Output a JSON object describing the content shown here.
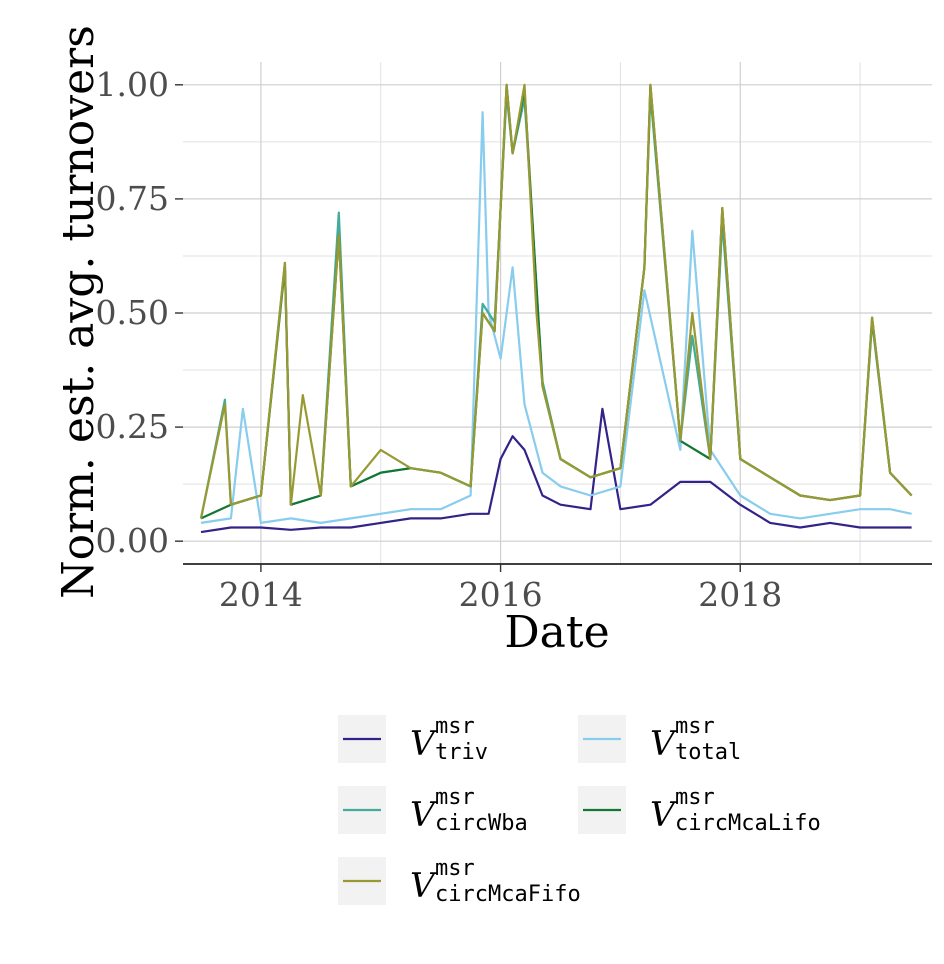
{
  "chart_data": {
    "type": "line",
    "title": "",
    "xlabel": "Date",
    "ylabel": "Norm. est. avg. turnovers",
    "xlim": [
      2013.35,
      2019.6
    ],
    "ylim": [
      -0.05,
      1.05
    ],
    "x_ticks": [
      {
        "value": 2014,
        "label": "2014"
      },
      {
        "value": 2016,
        "label": "2016"
      },
      {
        "value": 2018,
        "label": "2018"
      }
    ],
    "y_ticks": [
      {
        "value": 0.0,
        "label": "0.00"
      },
      {
        "value": 0.25,
        "label": "0.25"
      },
      {
        "value": 0.5,
        "label": "0.50"
      },
      {
        "value": 0.75,
        "label": "0.75"
      },
      {
        "value": 1.0,
        "label": "1.00"
      }
    ],
    "grid": true,
    "legend_position": "bottom",
    "series": [
      {
        "name": "V",
        "sup": "msr",
        "sub": "triv",
        "color": "#332288",
        "x": [
          2013.5,
          2013.75,
          2014.0,
          2014.25,
          2014.5,
          2014.75,
          2015.0,
          2015.25,
          2015.5,
          2015.75,
          2015.9,
          2016.0,
          2016.1,
          2016.2,
          2016.35,
          2016.5,
          2016.75,
          2016.85,
          2017.0,
          2017.25,
          2017.5,
          2017.75,
          2018.0,
          2018.25,
          2018.5,
          2018.75,
          2019.0,
          2019.25,
          2019.43
        ],
        "y": [
          0.02,
          0.03,
          0.03,
          0.025,
          0.03,
          0.03,
          0.04,
          0.05,
          0.05,
          0.06,
          0.06,
          0.18,
          0.23,
          0.2,
          0.1,
          0.08,
          0.07,
          0.29,
          0.07,
          0.08,
          0.13,
          0.13,
          0.08,
          0.04,
          0.03,
          0.04,
          0.03,
          0.03,
          0.03
        ]
      },
      {
        "name": "V",
        "sup": "msr",
        "sub": "total",
        "color": "#88CCEE",
        "x": [
          2013.5,
          2013.75,
          2013.85,
          2014.0,
          2014.25,
          2014.5,
          2014.75,
          2015.0,
          2015.25,
          2015.5,
          2015.75,
          2015.85,
          2015.9,
          2016.0,
          2016.1,
          2016.2,
          2016.35,
          2016.5,
          2016.75,
          2017.0,
          2017.2,
          2017.5,
          2017.6,
          2017.75,
          2018.0,
          2018.25,
          2018.5,
          2018.75,
          2019.0,
          2019.25,
          2019.43
        ],
        "y": [
          0.04,
          0.05,
          0.29,
          0.04,
          0.05,
          0.04,
          0.05,
          0.06,
          0.07,
          0.07,
          0.1,
          0.94,
          0.5,
          0.4,
          0.6,
          0.3,
          0.15,
          0.12,
          0.1,
          0.12,
          0.55,
          0.2,
          0.68,
          0.2,
          0.1,
          0.06,
          0.05,
          0.06,
          0.07,
          0.07,
          0.06
        ]
      },
      {
        "name": "V",
        "sup": "msr",
        "sub": "circWba",
        "color": "#44AA99",
        "x": [
          2013.5,
          2013.7,
          2013.75,
          2014.0,
          2014.2,
          2014.25,
          2014.5,
          2014.65,
          2014.75,
          2015.0,
          2015.25,
          2015.5,
          2015.75,
          2015.85,
          2015.95,
          2016.05,
          2016.1,
          2016.2,
          2016.35,
          2016.5,
          2016.75,
          2017.0,
          2017.2,
          2017.25,
          2017.5,
          2017.6,
          2017.75,
          2017.85,
          2018.0,
          2018.25,
          2018.5,
          2018.75,
          2019.0,
          2019.1,
          2019.25,
          2019.43
        ],
        "y": [
          0.05,
          0.31,
          0.08,
          0.1,
          0.61,
          0.08,
          0.1,
          0.72,
          0.12,
          0.15,
          0.16,
          0.15,
          0.12,
          0.52,
          0.48,
          0.98,
          0.85,
          0.97,
          0.35,
          0.18,
          0.14,
          0.16,
          0.6,
          0.98,
          0.22,
          0.45,
          0.18,
          0.7,
          0.18,
          0.14,
          0.1,
          0.09,
          0.1,
          0.48,
          0.15,
          0.1
        ]
      },
      {
        "name": "V",
        "sup": "msr",
        "sub": "circMcaLifo",
        "color": "#117733",
        "x": [
          2013.5,
          2013.75,
          2014.0,
          2014.2,
          2014.25,
          2014.5,
          2014.65,
          2014.75,
          2015.0,
          2015.25,
          2015.5,
          2015.75,
          2015.85,
          2015.95,
          2016.05,
          2016.1,
          2016.2,
          2016.35,
          2016.5,
          2016.75,
          2017.0,
          2017.2,
          2017.25,
          2017.5,
          2017.75,
          2017.85,
          2018.0,
          2018.25,
          2018.5,
          2018.75,
          2019.0,
          2019.1,
          2019.25,
          2019.43
        ],
        "y": [
          0.05,
          0.08,
          0.1,
          0.6,
          0.08,
          0.1,
          0.67,
          0.12,
          0.15,
          0.16,
          0.15,
          0.12,
          0.5,
          0.46,
          1.0,
          0.85,
          0.99,
          0.34,
          0.18,
          0.14,
          0.16,
          0.6,
          1.0,
          0.22,
          0.18,
          0.73,
          0.18,
          0.14,
          0.1,
          0.09,
          0.1,
          0.49,
          0.15,
          0.1
        ]
      },
      {
        "name": "V",
        "sup": "msr",
        "sub": "circMcaFifo",
        "color": "#999933",
        "x": [
          2013.5,
          2013.7,
          2013.75,
          2014.0,
          2014.2,
          2014.25,
          2014.35,
          2014.5,
          2014.65,
          2014.75,
          2015.0,
          2015.25,
          2015.5,
          2015.75,
          2015.85,
          2015.95,
          2016.05,
          2016.1,
          2016.2,
          2016.3,
          2016.35,
          2016.5,
          2016.75,
          2017.0,
          2017.2,
          2017.25,
          2017.5,
          2017.6,
          2017.75,
          2017.85,
          2018.0,
          2018.25,
          2018.5,
          2018.75,
          2019.0,
          2019.1,
          2019.25,
          2019.43
        ],
        "y": [
          0.05,
          0.3,
          0.08,
          0.1,
          0.61,
          0.08,
          0.32,
          0.1,
          0.67,
          0.12,
          0.2,
          0.16,
          0.15,
          0.12,
          0.5,
          0.46,
          1.0,
          0.85,
          1.0,
          0.5,
          0.34,
          0.18,
          0.14,
          0.16,
          0.6,
          1.0,
          0.22,
          0.5,
          0.18,
          0.73,
          0.18,
          0.14,
          0.1,
          0.09,
          0.1,
          0.49,
          0.15,
          0.1
        ]
      }
    ]
  }
}
